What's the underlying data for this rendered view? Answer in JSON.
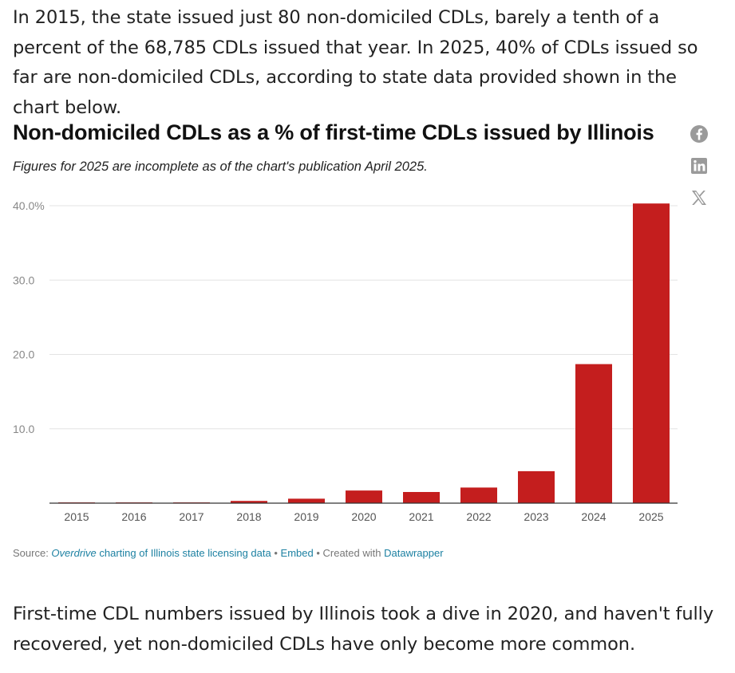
{
  "article": {
    "paragraph_before": "In 2015, the state issued just 80 non-domiciled CDLs, barely a tenth of a percent of the 68,785 CDLs issued that year. In 2025, 40% of CDLs issued so far are non-domiciled CDLs, according to state data provided shown in the chart below.",
    "paragraph_after": "First-time CDL numbers issued by Illinois took a dive in 2020, and haven't fully recovered, yet non-domiciled CDLs have only become more common."
  },
  "share_icons": [
    "facebook-icon",
    "linkedin-icon",
    "x-icon"
  ],
  "colors": {
    "bar": "#c41e1e",
    "grid": "#e3e3e3",
    "axis": "#333333",
    "link": "#1d81a2"
  },
  "chart_data": {
    "type": "bar",
    "title": "Non-domiciled CDLs as a % of first-time CDLs issued by Illinois",
    "subtitle": "Figures for 2025 are incomplete as of the chart's publication April 2025.",
    "categories": [
      "2015",
      "2016",
      "2017",
      "2018",
      "2019",
      "2020",
      "2021",
      "2022",
      "2023",
      "2024",
      "2025"
    ],
    "values": [
      0.1,
      0.1,
      0.1,
      0.3,
      0.6,
      1.7,
      1.5,
      2.1,
      4.3,
      18.7,
      40.3
    ],
    "ylim": [
      0,
      40
    ],
    "yticks": [
      10,
      20,
      30,
      40
    ],
    "ytick_labels": [
      "10.0",
      "20.0",
      "30.0",
      "40.0%"
    ],
    "xlabel": "",
    "ylabel": "",
    "grid": true
  },
  "source": {
    "prefix": "Source: ",
    "source_link_italic": "Overdrive",
    "source_link_rest": " charting of Illinois state licensing data",
    "separator": " • ",
    "embed_label": "Embed",
    "created_prefix": " • Created with ",
    "datawrapper_label": "Datawrapper"
  }
}
